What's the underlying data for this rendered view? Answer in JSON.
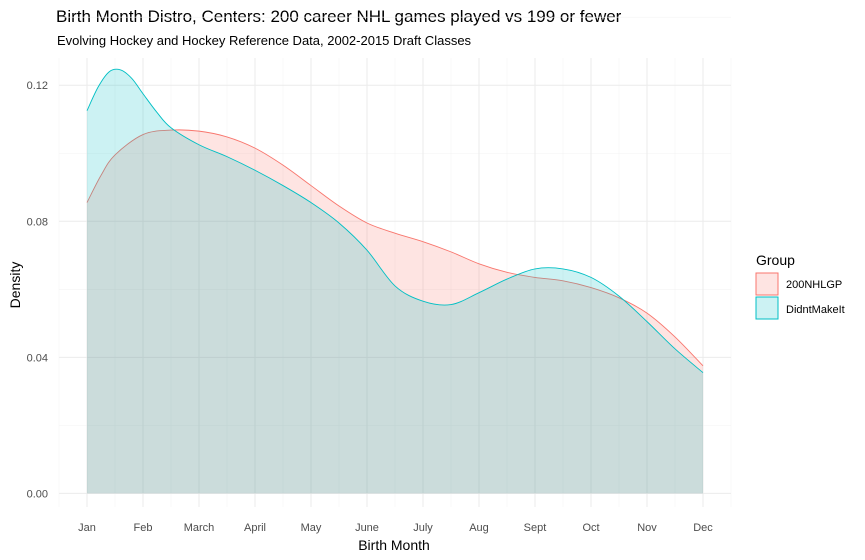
{
  "chart_data": {
    "type": "area",
    "title": "Birth Month Distro, Centers: 200 career NHL games played vs 199 or fewer",
    "subtitle": "Evolving Hockey and Hockey Reference Data, 2002-2015 Draft Classes",
    "xlabel": "Birth Month",
    "ylabel": "Density",
    "categories": [
      "Jan",
      "Feb",
      "March",
      "April",
      "May",
      "June",
      "July",
      "Aug",
      "Sept",
      "Oct",
      "Nov",
      "Dec"
    ],
    "xlim": [
      0.5,
      12.5
    ],
    "ylim": [
      -0.004,
      0.128
    ],
    "yticks": [
      0.0,
      0.04,
      0.08,
      0.12
    ],
    "ytick_labels": [
      "0.00",
      "0.04",
      "0.08",
      "0.12"
    ],
    "grid": true,
    "legend": {
      "title": "Group",
      "position": "right"
    },
    "series": [
      {
        "name": "200NHLGP",
        "color": "#F8766D",
        "x": [
          1.0,
          1.25,
          1.5,
          2.0,
          2.5,
          3.0,
          3.5,
          4.0,
          4.5,
          5.0,
          5.5,
          6.0,
          6.5,
          7.0,
          7.5,
          8.0,
          8.5,
          9.0,
          9.5,
          10.0,
          10.5,
          11.0,
          11.5,
          12.0
        ],
        "y": [
          0.0855,
          0.0935,
          0.0995,
          0.1055,
          0.1068,
          0.1065,
          0.1048,
          0.1015,
          0.0965,
          0.0905,
          0.0845,
          0.0795,
          0.0765,
          0.074,
          0.071,
          0.0675,
          0.065,
          0.0635,
          0.0625,
          0.0605,
          0.0575,
          0.053,
          0.046,
          0.0375
        ]
      },
      {
        "name": "DidntMakeIt",
        "color": "#00BFC4",
        "x": [
          1.0,
          1.2,
          1.4,
          1.6,
          1.8,
          2.0,
          2.25,
          2.5,
          3.0,
          3.5,
          4.0,
          4.5,
          5.0,
          5.5,
          6.0,
          6.5,
          7.0,
          7.5,
          8.0,
          8.5,
          9.0,
          9.5,
          10.0,
          10.5,
          11.0,
          11.5,
          12.0
        ],
        "y": [
          0.1125,
          0.1195,
          0.124,
          0.1245,
          0.122,
          0.1175,
          0.112,
          0.1075,
          0.1025,
          0.099,
          0.095,
          0.0905,
          0.0855,
          0.0795,
          0.0715,
          0.061,
          0.0565,
          0.0555,
          0.059,
          0.063,
          0.066,
          0.066,
          0.0635,
          0.058,
          0.0505,
          0.0425,
          0.0355
        ]
      }
    ]
  }
}
